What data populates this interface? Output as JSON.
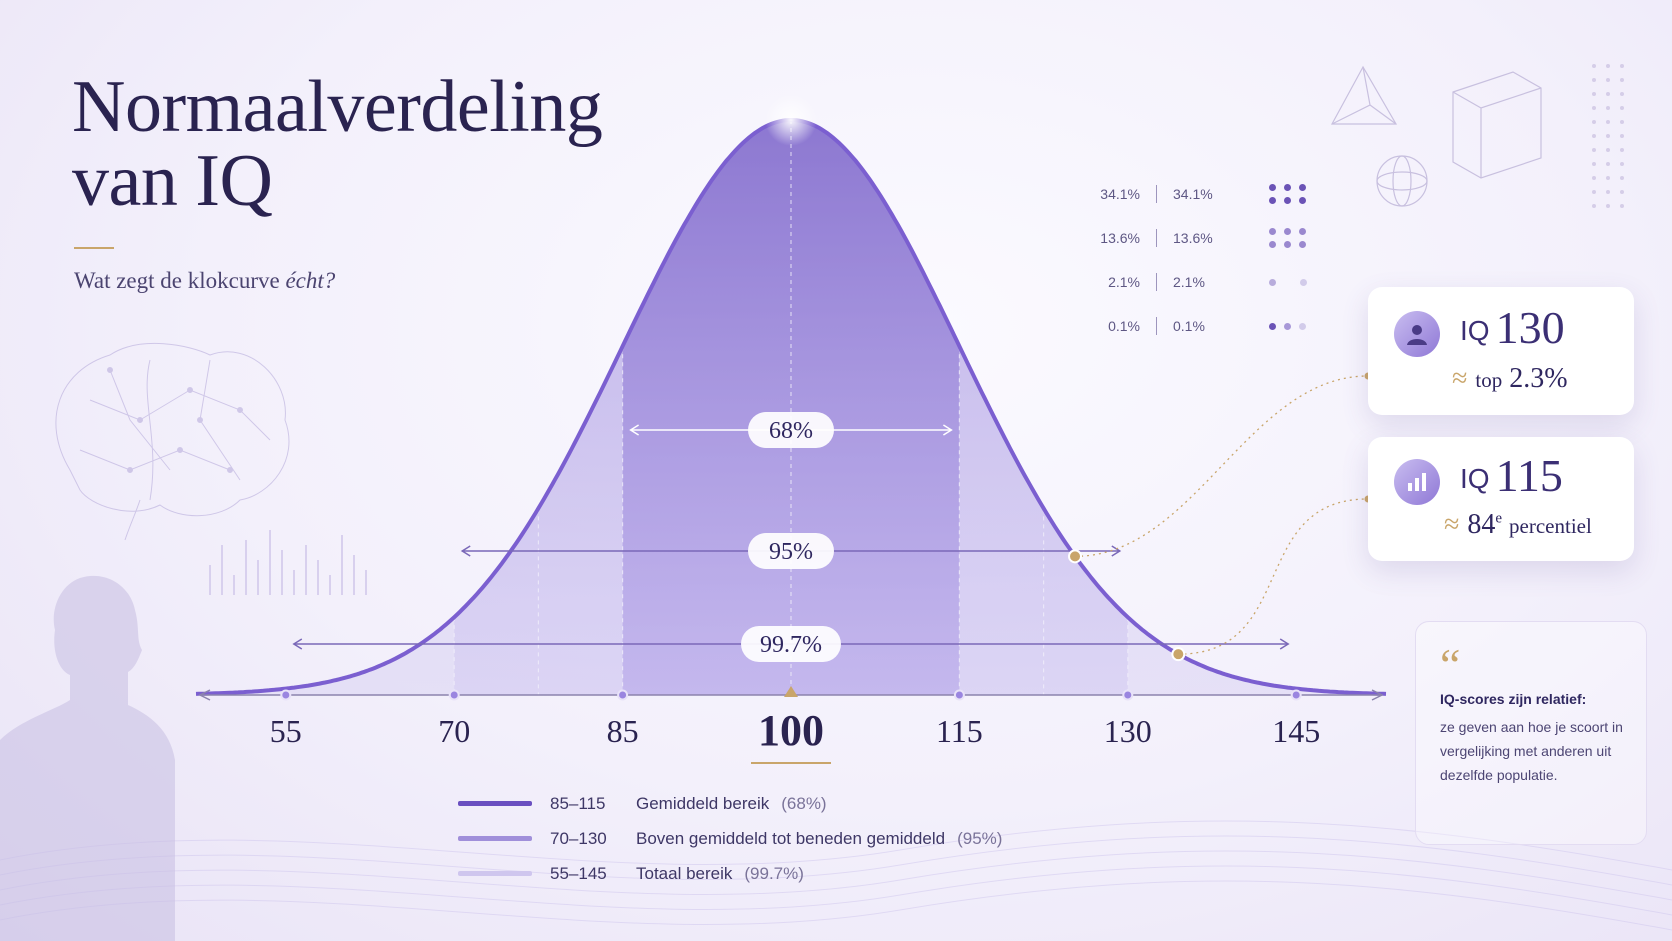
{
  "header": {
    "title_line1": "Normaalverdeling",
    "title_line2": "van IQ",
    "subtitle_main": "Wat zegt de klokcurve ",
    "subtitle_em": "écht?"
  },
  "chart_data": {
    "type": "area",
    "distribution": "normal",
    "mean": 100,
    "sd": 15,
    "xlim": [
      47,
      153
    ],
    "x_ticks": [
      55,
      70,
      85,
      100,
      115,
      130,
      145
    ],
    "highlight_tick": 100,
    "intervals": [
      {
        "label": "68%",
        "from": 85,
        "to": 115
      },
      {
        "label": "95%",
        "from": 70,
        "to": 130
      },
      {
        "label": "99.7%",
        "from": 55,
        "to": 145
      }
    ],
    "markers": [
      115,
      130
    ]
  },
  "percent_table": [
    {
      "left": "34.1%",
      "right": "34.1%",
      "dots": 3,
      "dot_rows": 2,
      "dot_color": "#6b53b6"
    },
    {
      "left": "13.6%",
      "right": "13.6%",
      "dots": 3,
      "dot_rows": 2,
      "dot_color": "#9a88cf"
    },
    {
      "left": "2.1%",
      "right": "2.1%",
      "dots": 2,
      "dot_rows": 1,
      "dot_color": "#b8acdc"
    },
    {
      "left": "0.1%",
      "right": "0.1%",
      "dots": 3,
      "dot_rows": 1,
      "dot_color": "#6b53b6"
    }
  ],
  "cards": {
    "iq130": {
      "iq": "IQ",
      "value": "130",
      "approx": "≈",
      "top_word": "top",
      "top_value": "2.3%",
      "icon": "user-icon"
    },
    "iq115": {
      "iq": "IQ",
      "value": "115",
      "approx": "≈",
      "pct_value": "84",
      "pct_sup": "e",
      "pct_word": "percentiel",
      "icon": "bar-chart-icon"
    }
  },
  "quote": {
    "mark": "“",
    "heading": "IQ-scores zijn relatief:",
    "body": "ze geven aan hoe je scoort in vergelijking met anderen uit dezelfde populatie."
  },
  "legend": [
    {
      "range": "85–115",
      "desc": "Gemiddeld bereik",
      "pct": "(68%)",
      "color": "#6a4fc0"
    },
    {
      "range": "70–130",
      "desc": "Boven gemiddeld tot beneden gemiddeld",
      "pct": "(95%)",
      "color": "#a08fda"
    },
    {
      "range": "55–145",
      "desc": "Totaal bereik",
      "pct": "(99.7%)",
      "color": "#cfc6ee"
    }
  ],
  "colors": {
    "accent_gold": "#c9a56a",
    "curve": "#7b5fd0",
    "text_dark": "#2a2350"
  }
}
